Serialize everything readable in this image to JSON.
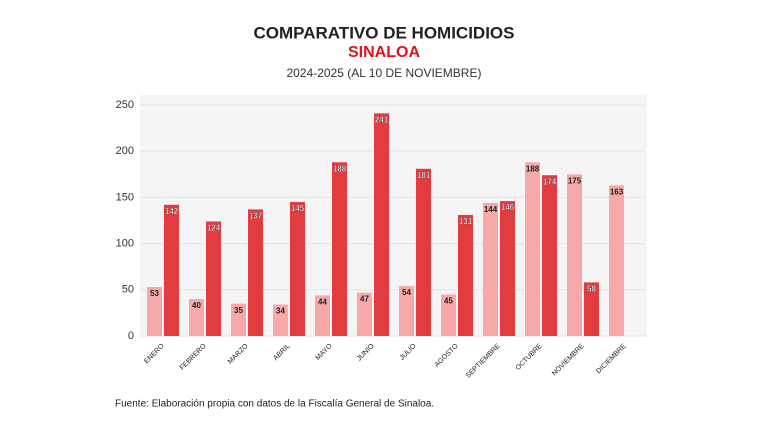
{
  "chart_data": {
    "type": "bar",
    "title": "COMPARATIVO DE HOMICIDIOS",
    "subtitle": "SINALOA",
    "subtitle2": "2024-2025 (AL 10 DE NOVIEMBRE)",
    "source": "Fuente: Elaboración propia con datos de la Fiscalía General de Sinaloa.",
    "categories": [
      "ENERO",
      "FEBRERO",
      "MARZO",
      "ABRIL",
      "MAYO",
      "JUNIO",
      "JULIO",
      "AGOSTO",
      "SEPTIEMBRE",
      "OCTUBRE",
      "NOVIEMBRE",
      "DICIEMBRE"
    ],
    "series": [
      {
        "color": "#f7a8a8",
        "values": [
          53,
          40,
          35,
          34,
          44,
          47,
          54,
          45,
          144,
          188,
          175,
          163
        ]
      },
      {
        "color": "#e23b40",
        "values": [
          142,
          124,
          137,
          145,
          188,
          241,
          181,
          131,
          146,
          174,
          58,
          null
        ]
      }
    ],
    "ylim": [
      0,
      250
    ],
    "yticks": [
      0,
      50,
      100,
      150,
      200,
      250
    ],
    "grid": true
  }
}
